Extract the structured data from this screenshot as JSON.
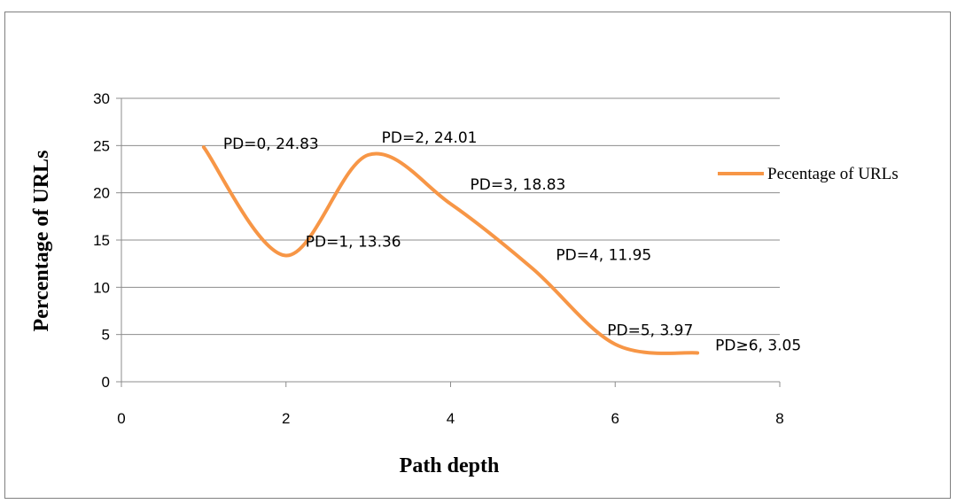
{
  "chart_data": {
    "type": "line",
    "title": "",
    "xlabel": "Path depth",
    "ylabel": "Percentage of URLs",
    "xlim": [
      0,
      8
    ],
    "ylim": [
      0,
      30
    ],
    "xticks": [
      0,
      2,
      4,
      6,
      8
    ],
    "yticks": [
      0,
      5,
      10,
      15,
      20,
      25,
      30
    ],
    "grid": "horizontal",
    "legend": "right",
    "smooth": true,
    "series": [
      {
        "name": "Pecentage of URLs",
        "color": "#F79646",
        "x": [
          1,
          2,
          3,
          4,
          5,
          6,
          7
        ],
        "y": [
          24.83,
          13.36,
          24.01,
          18.83,
          11.95,
          3.97,
          3.05
        ],
        "labels": [
          "PD=0, 24.83",
          "PD=1, 13.36",
          "PD=2, 24.01",
          "PD=3, 18.83",
          "PD=4, 11.95",
          "PD=5, 3.97",
          "PD≥6, 3.05"
        ]
      }
    ]
  }
}
